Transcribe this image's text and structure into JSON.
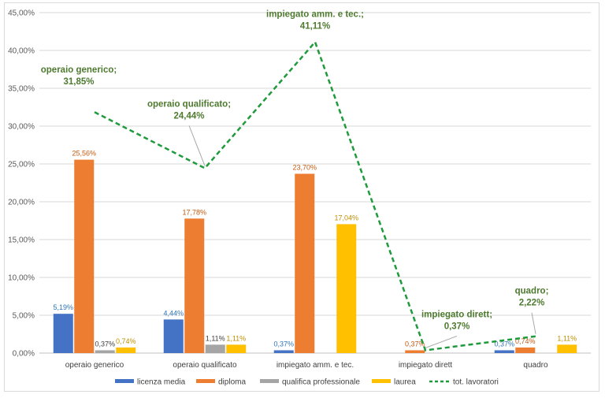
{
  "chart_data": {
    "type": "bar",
    "categories": [
      "operaio generico",
      "operaio qualificato",
      "impiegato amm. e tec.",
      "impiegato dirett",
      "quadro"
    ],
    "y_ticks": [
      "0,00%",
      "5,00%",
      "10,00%",
      "15,00%",
      "20,00%",
      "25,00%",
      "30,00%",
      "35,00%",
      "40,00%",
      "45,00%"
    ],
    "ylim": [
      0,
      45
    ],
    "grid": true,
    "legend_position": "bottom",
    "series": [
      {
        "name": "licenza media",
        "color": "#4472c4",
        "label_color": "#2e75b6",
        "values": [
          5.19,
          4.44,
          0.37,
          null,
          0.37
        ],
        "labels": [
          "5,19%",
          "4,44%",
          "0,37%",
          "",
          "0,37%"
        ]
      },
      {
        "name": "diploma",
        "color": "#ed7d31",
        "label_color": "#c55a11",
        "values": [
          25.56,
          17.78,
          23.7,
          0.37,
          0.74
        ],
        "labels": [
          "25,56%",
          "17,78%",
          "23,70%",
          "0,37%",
          "0,74%"
        ]
      },
      {
        "name": "qualifica professionale",
        "color": "#a5a5a5",
        "label_color": "#404040",
        "values": [
          0.37,
          1.11,
          null,
          null,
          null
        ],
        "labels": [
          "0,37%",
          "1,11%",
          "",
          "",
          ""
        ]
      },
      {
        "name": "laurea",
        "color": "#ffc000",
        "label_color": "#bf8f00",
        "values": [
          0.74,
          1.11,
          17.04,
          null,
          1.11
        ],
        "labels": [
          "0,74%",
          "1,11%",
          "17,04%",
          "",
          "1,11%"
        ]
      }
    ],
    "line_series": {
      "name": "tot. lavoratori",
      "color": "#1f9a3c",
      "values": [
        31.85,
        24.44,
        41.11,
        0.37,
        2.22
      ],
      "annotations": [
        {
          "line1": "operaio generico;",
          "line2": "31,85%"
        },
        {
          "line1": "operaio qualificato;",
          "line2": "24,44%"
        },
        {
          "line1": "impiegato amm. e tec.;",
          "line2": "41,11%"
        },
        {
          "line1": "impiegato dirett;",
          "line2": "0,37%"
        },
        {
          "line1": "quadro;",
          "line2": "2,22%"
        }
      ]
    }
  }
}
